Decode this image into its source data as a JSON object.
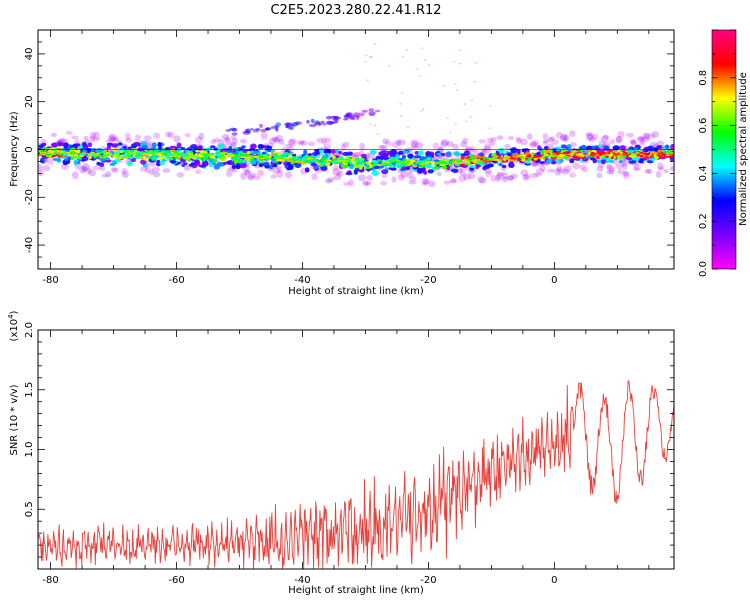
{
  "figure": {
    "title": "C2E5.2023.280.22.41.R12"
  },
  "chart_data": [
    {
      "type": "heatmap",
      "xlabel": "Height of straight line (km)",
      "ylabel": "Frequency (Hz)",
      "xlim": [
        -82,
        19
      ],
      "ylim": [
        -50,
        50
      ],
      "x_ticks": [
        -80,
        -60,
        -40,
        -20,
        0
      ],
      "y_ticks": [
        -40,
        -20,
        0,
        20,
        40
      ],
      "colorbar": {
        "label": "Normalized spectral amplitude",
        "range": [
          0,
          1
        ],
        "ticks": [
          "0.0",
          "0.2",
          "0.4",
          "0.6",
          "0.8"
        ],
        "tick_values": [
          0.0,
          0.2,
          0.4,
          0.6,
          0.8
        ],
        "colormap": [
          "#ff00ff",
          "#7a00ff",
          "#0000ff",
          "#00ffff",
          "#00ff00",
          "#ffff00",
          "#ff0000",
          "#ff0080"
        ]
      },
      "ridge": {
        "x": [
          -82,
          -75,
          -70,
          -65,
          -60,
          -55,
          -50,
          -45,
          -40,
          -35,
          -30,
          -25,
          -22,
          -18,
          -15,
          -10,
          -5,
          0,
          5,
          10,
          15,
          18
        ],
        "frequency": [
          -1,
          -2,
          -2,
          -2,
          -2,
          -3,
          -3,
          -3,
          -4,
          -5,
          -6,
          -5,
          -5,
          -6,
          -5,
          -4,
          -3,
          -2,
          -2,
          -2,
          -2,
          -2
        ],
        "intensity": [
          0.8,
          0.5,
          0.55,
          0.5,
          0.55,
          0.5,
          0.5,
          0.55,
          0.5,
          0.45,
          0.45,
          0.5,
          0.5,
          0.55,
          0.75,
          0.8,
          0.85,
          0.9,
          0.9,
          0.9,
          0.9,
          0.9
        ]
      },
      "secondary_feature": {
        "x": [
          -52,
          -46,
          -38,
          -32,
          -28
        ],
        "frequency": [
          7,
          9,
          11,
          14,
          16
        ],
        "intensity": [
          0.2,
          0.25,
          0.25,
          0.15,
          0.1
        ]
      }
    },
    {
      "type": "line",
      "xlabel": "Height of straight line (km)",
      "ylabel": "SNR (10 * v/v)",
      "y_multiplier": "(x10",
      "y_multiplier_exp": "4",
      "y_multiplier_close": ")",
      "xlim": [
        -82,
        19
      ],
      "ylim": [
        0,
        2.0
      ],
      "x_ticks": [
        -80,
        -60,
        -40,
        -20,
        0
      ],
      "y_ticks": [
        "0.5",
        "1.0",
        "1.5",
        "2.0"
      ],
      "y_tick_values": [
        0.5,
        1.0,
        1.5,
        2.0
      ],
      "color": "#e8403a",
      "envelope": {
        "x": [
          -82,
          -70,
          -60,
          -50,
          -45,
          -40,
          -35,
          -30,
          -25,
          -20,
          -15,
          -10,
          -5,
          0,
          3,
          5,
          8,
          12,
          15,
          19
        ],
        "base": [
          0.18,
          0.2,
          0.2,
          0.22,
          0.25,
          0.28,
          0.3,
          0.32,
          0.4,
          0.5,
          0.65,
          0.8,
          0.95,
          1.05,
          1.15,
          1.15,
          1.0,
          1.1,
          1.15,
          1.25
        ],
        "amp": [
          0.15,
          0.15,
          0.15,
          0.18,
          0.25,
          0.3,
          0.32,
          0.34,
          0.38,
          0.4,
          0.35,
          0.3,
          0.25,
          0.25,
          0.35,
          0.45,
          0.5,
          0.45,
          0.4,
          0.25
        ]
      }
    }
  ]
}
